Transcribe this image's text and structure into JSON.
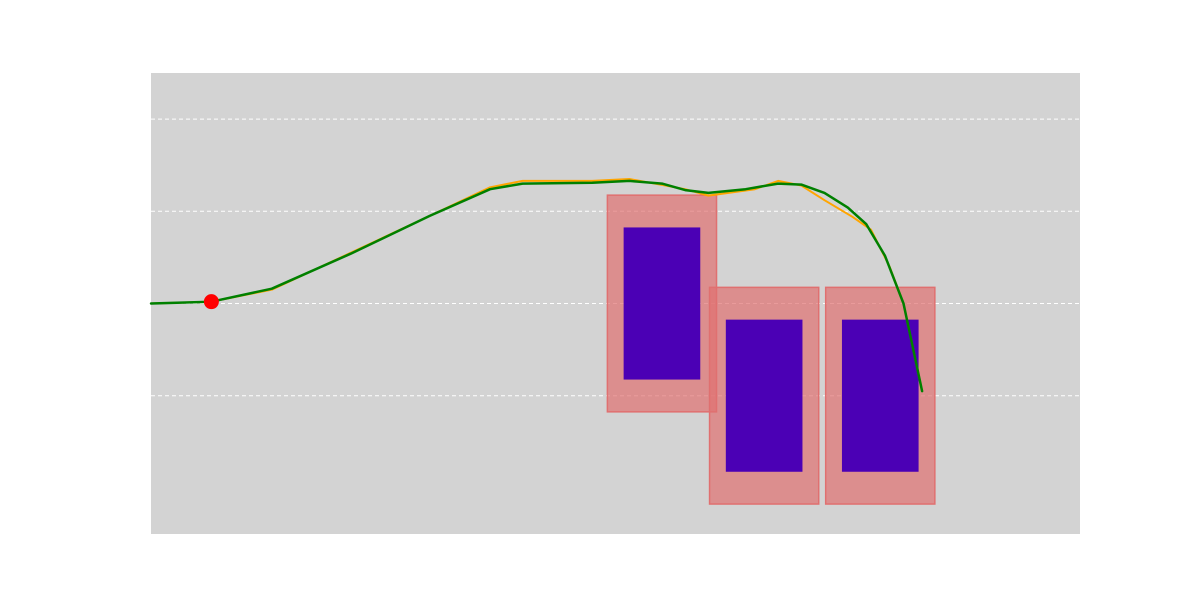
{
  "colors": {
    "background": "#ffffff",
    "plot_area": "#d3d3d3",
    "gridline": "#ffffff",
    "reference_path": "#ffa500",
    "smoothed_path": "#008000",
    "start_marker": "#ff0000",
    "obstacle_core": "#4b00b5",
    "obstacle_inflation": "#e07070"
  },
  "chart_data": {
    "type": "line",
    "xlim": [
      0,
      20
    ],
    "ylim": [
      -2.5,
      2.5
    ],
    "grid": true,
    "grid_axis": "y",
    "grid_values": [
      -1,
      0,
      1,
      2
    ],
    "series": [
      {
        "role": "reference_path",
        "x": [
          0,
          1.3,
          2.6,
          4.3,
          6.0,
          7.3,
          8.0,
          9.5,
          10.3,
          11.5,
          12.0,
          13.0,
          13.5,
          14.0,
          14.5,
          15.1,
          15.5,
          15.9,
          16.2,
          16.6
        ],
        "y": [
          0.0,
          0.02,
          0.15,
          0.55,
          0.95,
          1.26,
          1.33,
          1.33,
          1.35,
          1.24,
          1.17,
          1.24,
          1.33,
          1.28,
          1.12,
          0.94,
          0.8,
          0.4,
          0.0,
          -0.95
        ]
      },
      {
        "role": "smoothed_path",
        "x": [
          0,
          1.3,
          2.6,
          4.3,
          6.0,
          7.3,
          8.0,
          9.5,
          10.3,
          11.0,
          11.5,
          12.0,
          12.8,
          13.5,
          14.0,
          14.5,
          15.0,
          15.4,
          15.8,
          16.2,
          16.6
        ],
        "y": [
          0.0,
          0.02,
          0.16,
          0.54,
          0.95,
          1.24,
          1.3,
          1.31,
          1.33,
          1.3,
          1.23,
          1.2,
          1.24,
          1.3,
          1.29,
          1.2,
          1.04,
          0.86,
          0.52,
          0.0,
          -0.95
        ]
      }
    ],
    "start_point": {
      "x": 1.3,
      "y": 0.02
    },
    "obstacles": [
      {
        "cx": 11.0,
        "cy": 0.0,
        "core_size": 1.65,
        "inflated_size": 2.35
      },
      {
        "cx": 13.2,
        "cy": -1.0,
        "core_size": 1.65,
        "inflated_size": 2.35
      },
      {
        "cx": 15.7,
        "cy": -1.0,
        "core_size": 1.65,
        "inflated_size": 2.35
      }
    ]
  }
}
